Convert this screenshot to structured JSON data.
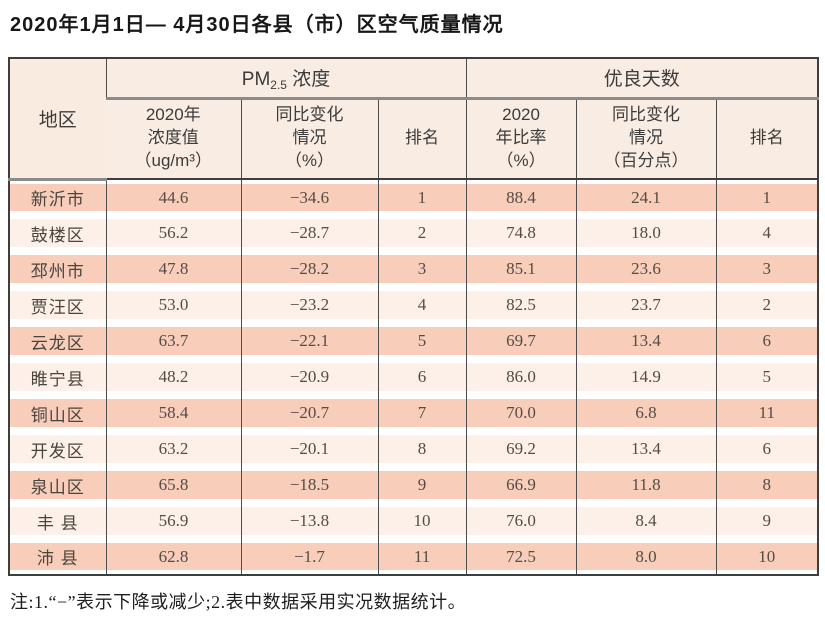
{
  "page": {
    "title": "2020年1月1日— 4月30日各县（市）区空气质量情况",
    "note": "注:1.“−”表示下降或减少;2.表中数据采用实况数据统计。"
  },
  "table": {
    "region_header": "地区",
    "group_pm25": {
      "prefix": "PM",
      "sub": "2.5",
      "suffix": " 浓度"
    },
    "group_good_days": "优良天数",
    "subheaders": [
      "2020年\n浓度值\n（ug/m³）",
      "同比变化\n情况\n（%）",
      "排名",
      "2020\n年比率\n（%）",
      "同比变化\n情况\n（百分点）",
      "排名"
    ],
    "rows": [
      {
        "region": "新沂市",
        "pm25_value": "44.6",
        "pm25_change": "−34.6",
        "pm25_rank": "1",
        "good_rate": "88.4",
        "good_change": "24.1",
        "good_rank": "1"
      },
      {
        "region": "鼓楼区",
        "pm25_value": "56.2",
        "pm25_change": "−28.7",
        "pm25_rank": "2",
        "good_rate": "74.8",
        "good_change": "18.0",
        "good_rank": "4"
      },
      {
        "region": "邳州市",
        "pm25_value": "47.8",
        "pm25_change": "−28.2",
        "pm25_rank": "3",
        "good_rate": "85.1",
        "good_change": "23.6",
        "good_rank": "3"
      },
      {
        "region": "贾汪区",
        "pm25_value": "53.0",
        "pm25_change": "−23.2",
        "pm25_rank": "4",
        "good_rate": "82.5",
        "good_change": "23.7",
        "good_rank": "2"
      },
      {
        "region": "云龙区",
        "pm25_value": "63.7",
        "pm25_change": "−22.1",
        "pm25_rank": "5",
        "good_rate": "69.7",
        "good_change": "13.4",
        "good_rank": "6"
      },
      {
        "region": "睢宁县",
        "pm25_value": "48.2",
        "pm25_change": "−20.9",
        "pm25_rank": "6",
        "good_rate": "86.0",
        "good_change": "14.9",
        "good_rank": "5"
      },
      {
        "region": "铜山区",
        "pm25_value": "58.4",
        "pm25_change": "−20.7",
        "pm25_rank": "7",
        "good_rate": "70.0",
        "good_change": "6.8",
        "good_rank": "11"
      },
      {
        "region": "开发区",
        "pm25_value": "63.2",
        "pm25_change": "−20.1",
        "pm25_rank": "8",
        "good_rate": "69.2",
        "good_change": "13.4",
        "good_rank": "6"
      },
      {
        "region": "泉山区",
        "pm25_value": "65.8",
        "pm25_change": "−18.5",
        "pm25_rank": "9",
        "good_rate": "66.9",
        "good_change": "11.8",
        "good_rank": "8"
      },
      {
        "region": "丰 县",
        "pm25_value": "56.9",
        "pm25_change": "−13.8",
        "pm25_rank": "10",
        "good_rate": "76.0",
        "good_change": "8.4",
        "good_rank": "9"
      },
      {
        "region": "沛 县",
        "pm25_value": "62.8",
        "pm25_change": "−1.7",
        "pm25_rank": "11",
        "good_rate": "72.5",
        "good_change": "8.0",
        "good_rank": "10"
      }
    ]
  }
}
